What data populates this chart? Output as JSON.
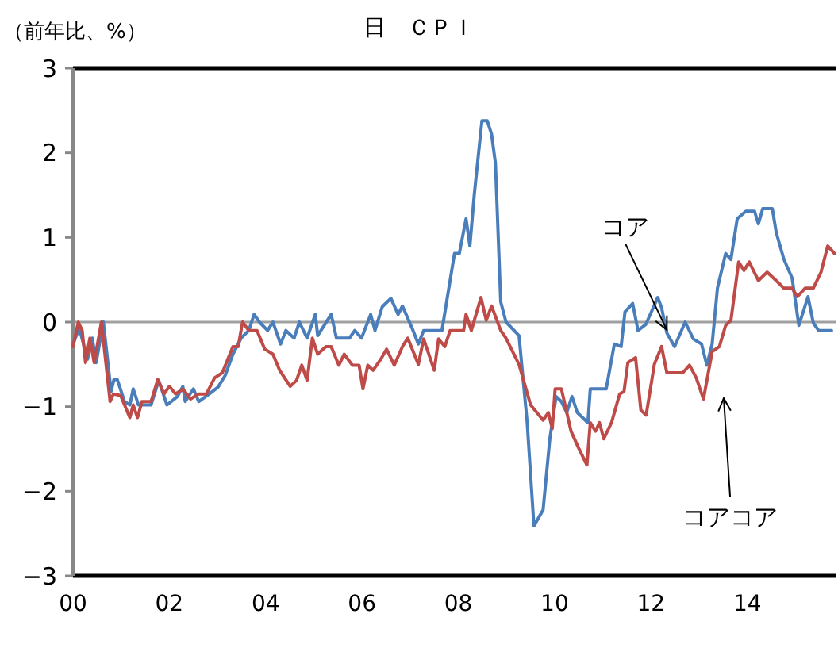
{
  "chart_data": {
    "type": "line",
    "title": "日　ＣＰＩ",
    "ylabel": "（前年比、%）",
    "xlim": [
      0,
      15.85
    ],
    "ylim": [
      -3,
      3
    ],
    "xticks": [
      {
        "value": 0,
        "label": "00"
      },
      {
        "value": 2,
        "label": "02"
      },
      {
        "value": 4,
        "label": "04"
      },
      {
        "value": 6,
        "label": "06"
      },
      {
        "value": 8,
        "label": "08"
      },
      {
        "value": 10,
        "label": "10"
      },
      {
        "value": 12,
        "label": "12"
      },
      {
        "value": 14,
        "label": "14"
      }
    ],
    "yticks": [
      -3,
      -2,
      -1,
      0,
      1,
      2,
      3
    ],
    "grid": false,
    "marker": "none",
    "line_style": "solid",
    "ref_lines": [
      {
        "axis": "y",
        "value": 0,
        "color": "#a0a0a0"
      }
    ],
    "series": [
      {
        "name": "コア",
        "color": "#4a7ebb",
        "x": [
          0,
          0.13,
          0.3,
          0.4,
          0.48,
          0.63,
          0.79,
          0.85,
          0.92,
          1.07,
          1.18,
          1.25,
          1.36,
          1.62,
          1.78,
          1.95,
          2.17,
          2.28,
          2.33,
          2.5,
          2.61,
          2.83,
          3.01,
          3.16,
          3.32,
          3.49,
          3.65,
          3.76,
          3.87,
          4.04,
          4.15,
          4.31,
          4.42,
          4.59,
          4.7,
          4.86,
          5.03,
          5.08,
          5.36,
          5.47,
          5.74,
          5.85,
          5.99,
          6.18,
          6.27,
          6.42,
          6.6,
          6.75,
          6.84,
          7.06,
          7.17,
          7.28,
          7.66,
          7.92,
          8.02,
          8.16,
          8.24,
          8.33,
          8.49,
          8.6,
          8.69,
          8.77,
          8.88,
          8.99,
          9.26,
          9.43,
          9.57,
          9.76,
          9.9,
          10.03,
          10.14,
          10.25,
          10.36,
          10.47,
          10.58,
          10.69,
          10.74,
          11.07,
          11.24,
          11.38,
          11.46,
          11.62,
          11.73,
          11.89,
          12.14,
          12.22,
          12.33,
          12.49,
          12.71,
          12.88,
          13.05,
          13.16,
          13.27,
          13.38,
          13.55,
          13.66,
          13.79,
          13.97,
          14.15,
          14.23,
          14.32,
          14.52,
          14.6,
          14.76,
          14.93,
          15.07,
          15.26,
          15.37,
          15.48,
          15.75
        ],
        "values": [
          -0.26,
          -0.07,
          -0.44,
          -0.19,
          -0.48,
          0,
          -0.82,
          -0.68,
          -0.68,
          -0.94,
          -0.98,
          -0.79,
          -0.98,
          -0.98,
          -0.69,
          -0.98,
          -0.88,
          -0.76,
          -0.94,
          -0.79,
          -0.94,
          -0.85,
          -0.77,
          -0.63,
          -0.38,
          -0.19,
          -0.1,
          0.09,
          0,
          -0.1,
          0,
          -0.26,
          -0.1,
          -0.19,
          0,
          -0.19,
          0.09,
          -0.16,
          0.09,
          -0.19,
          -0.19,
          -0.1,
          -0.19,
          0.09,
          -0.1,
          0.18,
          0.28,
          0.09,
          0.19,
          -0.1,
          -0.26,
          -0.1,
          -0.1,
          0.81,
          0.81,
          1.22,
          0.9,
          1.5,
          2.38,
          2.38,
          2.22,
          1.88,
          0.24,
          0,
          -0.16,
          -1.19,
          -2.41,
          -2.22,
          -1.38,
          -0.88,
          -0.94,
          -1.07,
          -0.88,
          -1.07,
          -1.13,
          -1.19,
          -0.79,
          -0.79,
          -0.26,
          -0.29,
          0.12,
          0.22,
          -0.1,
          -0.03,
          0.29,
          0.17,
          -0.13,
          -0.29,
          0,
          -0.2,
          -0.26,
          -0.51,
          -0.26,
          0.4,
          0.81,
          0.74,
          1.22,
          1.31,
          1.31,
          1.16,
          1.34,
          1.34,
          1.06,
          0.74,
          0.52,
          -0.04,
          0.3,
          -0.01,
          -0.1,
          -0.1
        ]
      },
      {
        "name": "コアコア",
        "color": "#be4b48",
        "x": [
          0,
          0.11,
          0.19,
          0.26,
          0.35,
          0.44,
          0.59,
          0.77,
          0.84,
          0.99,
          1.18,
          1.25,
          1.34,
          1.43,
          1.62,
          1.76,
          1.89,
          2,
          2.13,
          2.28,
          2.44,
          2.61,
          2.77,
          2.94,
          3.1,
          3.32,
          3.43,
          3.52,
          3.65,
          3.82,
          3.98,
          4.15,
          4.29,
          4.51,
          4.64,
          4.75,
          4.86,
          4.97,
          5.08,
          5.25,
          5.36,
          5.52,
          5.63,
          5.8,
          5.94,
          6.02,
          6.12,
          6.23,
          6.39,
          6.51,
          6.67,
          6.84,
          6.95,
          7.17,
          7.28,
          7.5,
          7.59,
          7.72,
          7.83,
          8.11,
          8.16,
          8.27,
          8.47,
          8.58,
          8.69,
          8.88,
          8.99,
          9.26,
          9.5,
          9.76,
          9.87,
          9.95,
          10.01,
          10.14,
          10.34,
          10.49,
          10.67,
          10.74,
          10.85,
          10.93,
          11.02,
          11.18,
          11.35,
          11.44,
          11.52,
          11.68,
          11.79,
          11.9,
          12.07,
          12.22,
          12.33,
          12.66,
          12.8,
          12.94,
          13.09,
          13.27,
          13.42,
          13.55,
          13.66,
          13.82,
          13.93,
          14.04,
          14.23,
          14.41,
          14.6,
          14.76,
          14.93,
          15.04,
          15.2,
          15.37,
          15.53,
          15.67,
          15.81
        ],
        "values": [
          -0.29,
          0,
          -0.1,
          -0.48,
          -0.19,
          -0.48,
          0,
          -0.94,
          -0.85,
          -0.87,
          -1.13,
          -0.98,
          -1.13,
          -0.94,
          -0.94,
          -0.68,
          -0.85,
          -0.76,
          -0.85,
          -0.79,
          -0.91,
          -0.85,
          -0.85,
          -0.66,
          -0.6,
          -0.29,
          -0.29,
          0,
          -0.1,
          -0.1,
          -0.32,
          -0.38,
          -0.57,
          -0.76,
          -0.69,
          -0.51,
          -0.69,
          -0.19,
          -0.38,
          -0.29,
          -0.29,
          -0.51,
          -0.38,
          -0.51,
          -0.51,
          -0.79,
          -0.51,
          -0.57,
          -0.44,
          -0.32,
          -0.51,
          -0.29,
          -0.19,
          -0.5,
          -0.2,
          -0.57,
          -0.2,
          -0.29,
          -0.1,
          -0.1,
          0.09,
          -0.1,
          0.29,
          0.02,
          0.19,
          -0.1,
          -0.19,
          -0.5,
          -0.98,
          -1.16,
          -1.07,
          -1.26,
          -0.79,
          -0.79,
          -1.29,
          -1.48,
          -1.69,
          -1.19,
          -1.29,
          -1.19,
          -1.38,
          -1.19,
          -0.85,
          -0.82,
          -0.48,
          -0.42,
          -1.04,
          -1.1,
          -0.5,
          -0.29,
          -0.6,
          -0.6,
          -0.51,
          -0.66,
          -0.91,
          -0.35,
          -0.29,
          -0.04,
          0.02,
          0.71,
          0.61,
          0.71,
          0.49,
          0.59,
          0.49,
          0.4,
          0.4,
          0.3,
          0.4,
          0.4,
          0.59,
          0.9,
          0.81
        ]
      }
    ]
  }
}
